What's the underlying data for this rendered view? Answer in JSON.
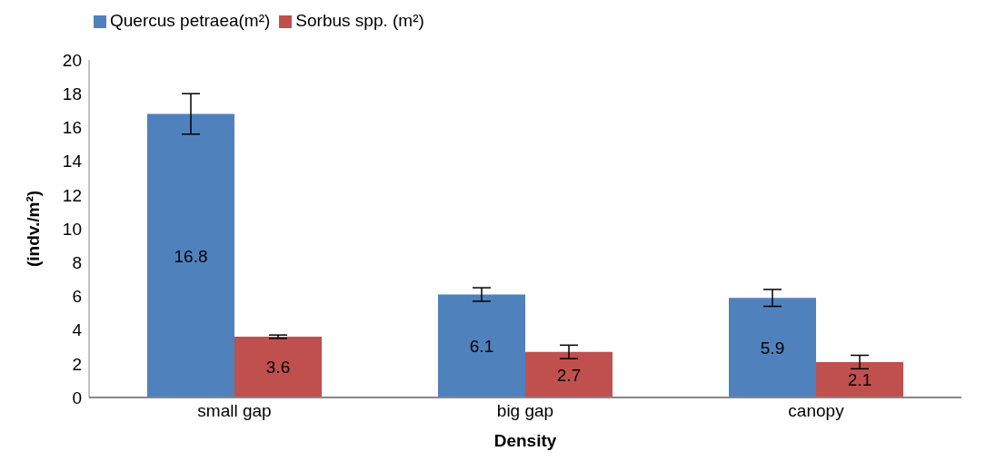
{
  "chart_data": {
    "type": "bar",
    "ylabel": "(indv./m²)",
    "xlabel": "Density",
    "categories": [
      "small gap",
      "big gap",
      "canopy"
    ],
    "series": [
      {
        "name": "Quercus petraea(m²)",
        "color": "#4f81bd",
        "values": [
          16.8,
          6.1,
          5.9
        ],
        "errors": [
          1.2,
          0.4,
          0.5
        ]
      },
      {
        "name": "Sorbus spp. (m²)",
        "color": "#c0504d",
        "values": [
          3.6,
          2.7,
          2.1
        ],
        "errors": [
          0.1,
          0.4,
          0.4
        ]
      }
    ],
    "ylim": [
      0,
      20
    ],
    "yticks": [
      0,
      2,
      4,
      6,
      8,
      10,
      12,
      14,
      16,
      18,
      20
    ],
    "grid": false,
    "legend": "top left",
    "data_labels": true
  }
}
